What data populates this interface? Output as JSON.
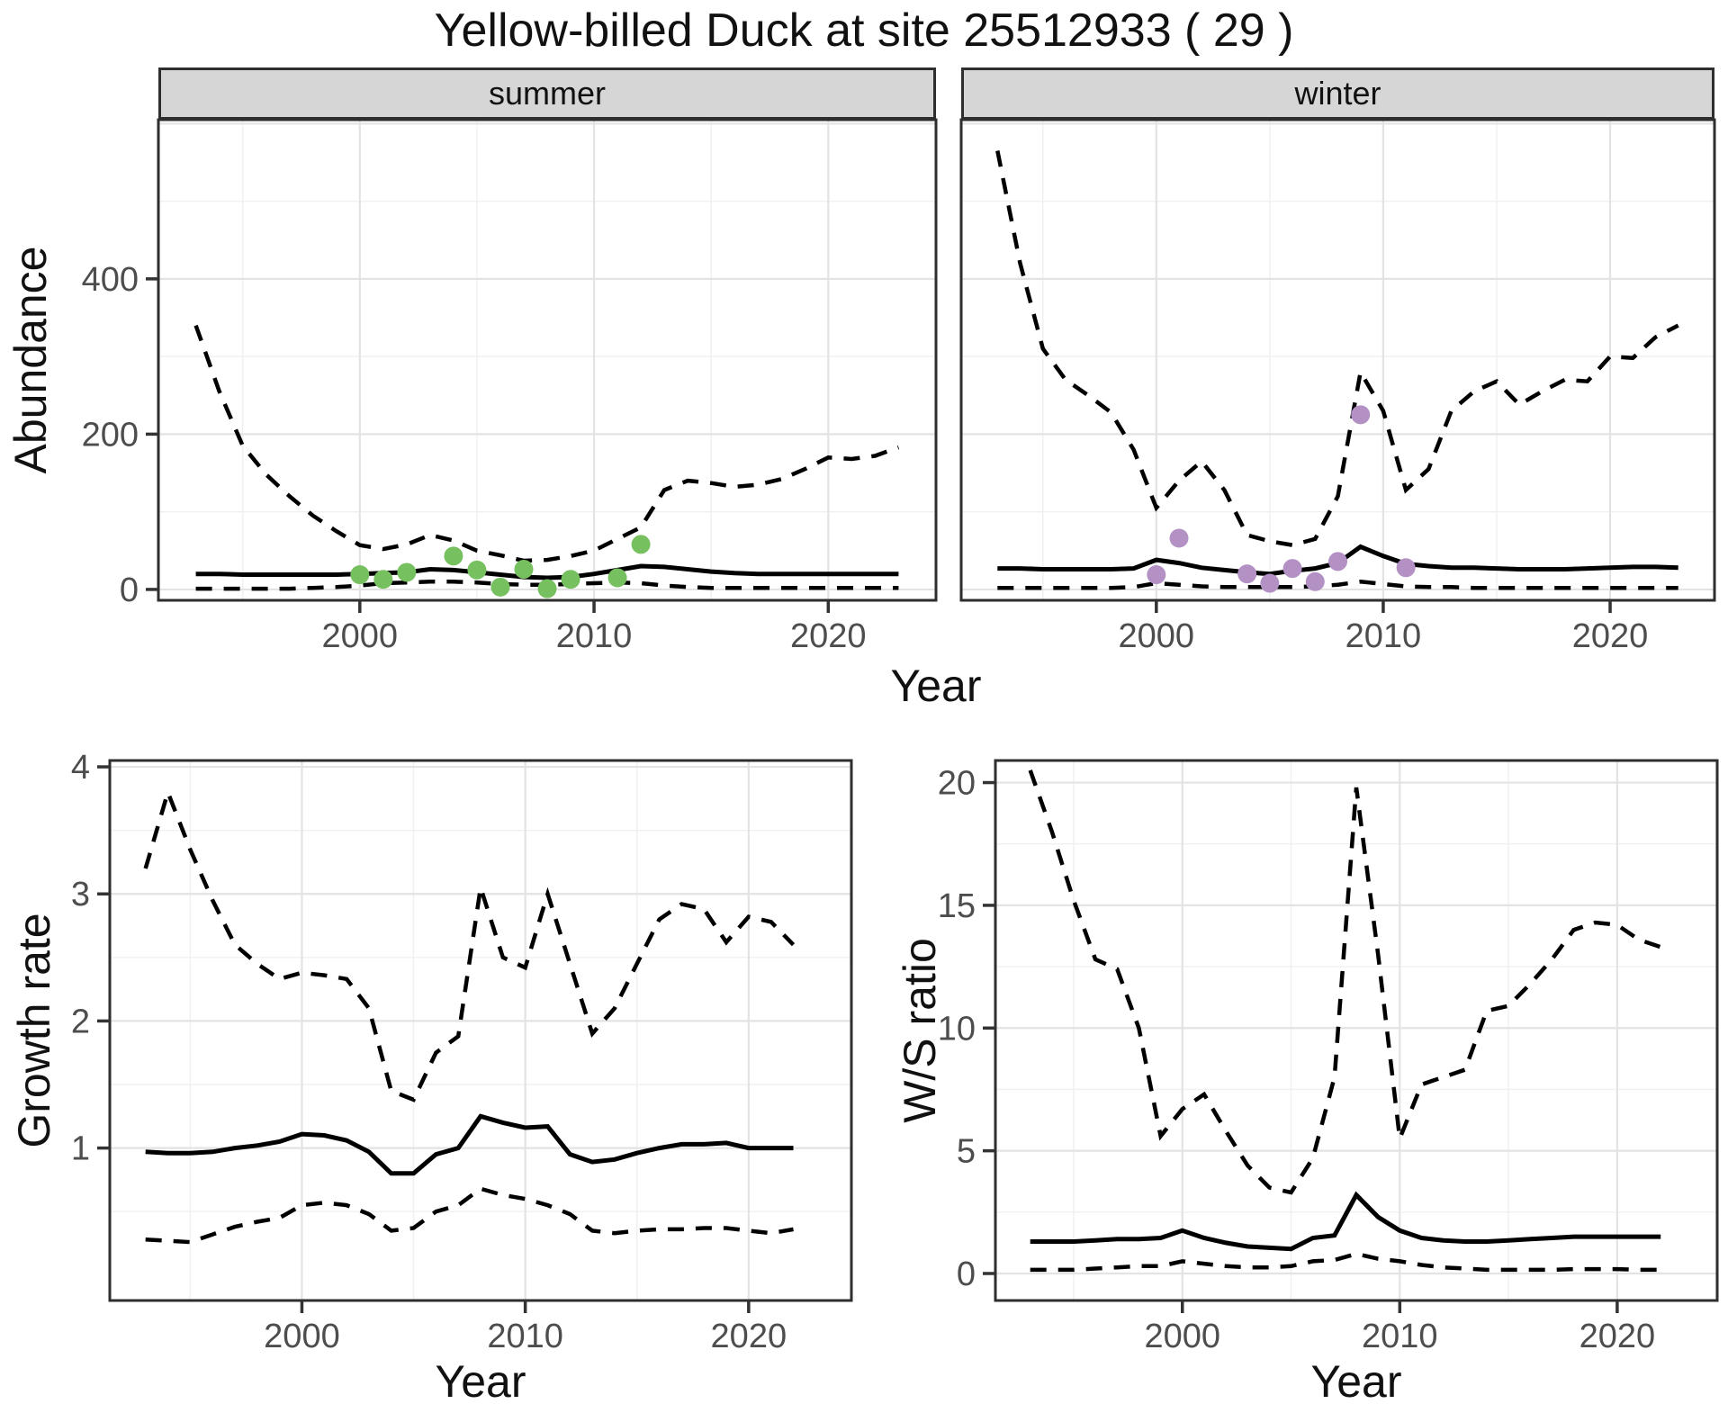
{
  "title": "Yellow-billed Duck at site 25512933 ( 29 )",
  "labels": {
    "x_axis": "Year",
    "abundance_axis": "Abundance",
    "growth_axis": "Growth rate",
    "ws_axis": "W/S ratio",
    "facet_summer": "summer",
    "facet_winter": "winter"
  },
  "colors": {
    "summer_points": "#77c05f",
    "winter_points": "#b391c5",
    "line": "#000000",
    "strip_bg": "#d6d6d6",
    "panel_border": "#2e2e2e",
    "grid_major": "#e3e3e3",
    "grid_minor": "#f0f0f0",
    "tick_text": "#4d4d4d"
  },
  "chart_data": [
    {
      "id": "abundance_summer",
      "type": "line",
      "facet": "summer",
      "xlabel": "Year",
      "ylabel": "Abundance",
      "xlim": [
        1991.4,
        2024.6
      ],
      "ylim": [
        -14,
        605
      ],
      "x_ticks": [
        2000,
        2010,
        2020
      ],
      "x_minor": [
        1995,
        2005,
        2015
      ],
      "y_ticks": [
        0,
        200,
        400
      ],
      "y_minor": [
        100,
        300,
        500
      ],
      "y_grid_extra": [
        600
      ],
      "show_y_tick_labels": true,
      "years": [
        1993,
        1994,
        1995,
        1996,
        1997,
        1998,
        1999,
        2000,
        2001,
        2002,
        2003,
        2004,
        2005,
        2006,
        2007,
        2008,
        2009,
        2010,
        2011,
        2012,
        2013,
        2014,
        2015,
        2016,
        2017,
        2018,
        2019,
        2020,
        2021,
        2022,
        2023
      ],
      "series": [
        {
          "name": "upper 95% CI",
          "style": "dashed",
          "values": [
            340,
            255,
            185,
            148,
            120,
            95,
            75,
            57,
            52,
            58,
            70,
            63,
            50,
            44,
            37,
            38,
            43,
            50,
            65,
            80,
            128,
            140,
            137,
            132,
            135,
            142,
            155,
            170,
            168,
            172,
            183
          ]
        },
        {
          "name": "median",
          "style": "solid",
          "values": [
            20,
            20,
            19,
            19,
            19,
            19,
            19,
            20,
            21,
            22,
            26,
            25,
            22,
            19,
            16,
            15,
            16,
            20,
            25,
            30,
            29,
            26,
            23,
            21,
            20,
            20,
            20,
            20,
            20,
            20,
            20
          ]
        },
        {
          "name": "lower 95% CI",
          "style": "dashed",
          "values": [
            1,
            1,
            1,
            1,
            1,
            2,
            3,
            5,
            8,
            9,
            10,
            10,
            9,
            7,
            6,
            6,
            7,
            8,
            9,
            8,
            5,
            3,
            2,
            2,
            2,
            2,
            2,
            2,
            2,
            2,
            2
          ]
        }
      ],
      "points": {
        "name": "summer observed counts",
        "color": "#77c05f",
        "x": [
          2000,
          2001,
          2002,
          2004,
          2005,
          2006,
          2007,
          2008,
          2009,
          2011,
          2012
        ],
        "y": [
          19,
          13,
          22,
          43,
          25,
          3,
          26,
          1,
          13,
          15,
          58
        ]
      }
    },
    {
      "id": "abundance_winter",
      "type": "line",
      "facet": "winter",
      "xlabel": "Year",
      "ylabel": "Abundance",
      "xlim": [
        1991.4,
        2024.6
      ],
      "ylim": [
        -14,
        605
      ],
      "x_ticks": [
        2000,
        2010,
        2020
      ],
      "x_minor": [
        1995,
        2005,
        2015
      ],
      "y_ticks": [
        0,
        200,
        400
      ],
      "y_minor": [
        100,
        300,
        500
      ],
      "y_grid_extra": [
        600
      ],
      "show_y_tick_labels": false,
      "years": [
        1993,
        1994,
        1995,
        1996,
        1997,
        1998,
        1999,
        2000,
        2001,
        2002,
        2003,
        2004,
        2005,
        2006,
        2007,
        2008,
        2009,
        2010,
        2011,
        2012,
        2013,
        2014,
        2015,
        2016,
        2017,
        2018,
        2019,
        2020,
        2021,
        2022,
        2023
      ],
      "series": [
        {
          "name": "upper 95% CI",
          "style": "dashed",
          "values": [
            565,
            420,
            310,
            270,
            250,
            228,
            180,
            105,
            140,
            165,
            128,
            70,
            62,
            57,
            65,
            120,
            280,
            230,
            128,
            155,
            230,
            255,
            268,
            238,
            255,
            270,
            268,
            300,
            298,
            325,
            340
          ]
        },
        {
          "name": "median",
          "style": "solid",
          "values": [
            27,
            27,
            26,
            26,
            26,
            26,
            27,
            38,
            34,
            28,
            25,
            22,
            20,
            24,
            27,
            34,
            55,
            43,
            33,
            30,
            28,
            28,
            27,
            26,
            26,
            26,
            27,
            28,
            29,
            29,
            28
          ]
        },
        {
          "name": "lower 95% CI",
          "style": "dashed",
          "values": [
            2,
            2,
            2,
            2,
            2,
            2,
            3,
            8,
            6,
            4,
            3,
            3,
            3,
            3,
            4,
            6,
            10,
            7,
            4,
            3,
            3,
            2,
            2,
            2,
            2,
            2,
            2,
            2,
            2,
            2,
            2
          ]
        }
      ],
      "points": {
        "name": "winter observed counts",
        "color": "#b391c5",
        "x": [
          2000,
          2001,
          2004,
          2005,
          2006,
          2007,
          2008,
          2009,
          2011
        ],
        "y": [
          19,
          66,
          20,
          8,
          27,
          10,
          36,
          225,
          28
        ]
      }
    },
    {
      "id": "growth_rate",
      "type": "line",
      "facet": "",
      "xlabel": "Year",
      "ylabel": "Growth rate",
      "xlim": [
        1991.4,
        2024.6
      ],
      "ylim": [
        -0.2,
        4.05
      ],
      "x_ticks": [
        2000,
        2010,
        2020
      ],
      "x_minor": [
        1995,
        2005,
        2015
      ],
      "y_ticks": [
        1,
        2,
        3,
        4
      ],
      "y_minor": [
        0.5,
        1.5,
        2.5,
        3.5
      ],
      "y_grid_extra": [],
      "show_y_tick_labels": true,
      "years": [
        1993,
        1994,
        1995,
        1996,
        1997,
        1998,
        1999,
        2000,
        2001,
        2002,
        2003,
        2004,
        2005,
        2006,
        2007,
        2008,
        2009,
        2010,
        2011,
        2012,
        2013,
        2014,
        2015,
        2016,
        2017,
        2018,
        2019,
        2020,
        2021,
        2022
      ],
      "series": [
        {
          "name": "upper 95% CI",
          "style": "dashed",
          "values": [
            3.2,
            3.8,
            3.35,
            2.95,
            2.6,
            2.45,
            2.33,
            2.38,
            2.36,
            2.33,
            2.1,
            1.45,
            1.38,
            1.75,
            1.88,
            3.05,
            2.5,
            2.42,
            3.0,
            2.45,
            1.9,
            2.1,
            2.45,
            2.8,
            2.92,
            2.88,
            2.62,
            2.82,
            2.78,
            2.6
          ]
        },
        {
          "name": "median",
          "style": "solid",
          "values": [
            0.97,
            0.96,
            0.96,
            0.97,
            1.0,
            1.02,
            1.05,
            1.11,
            1.1,
            1.06,
            0.97,
            0.8,
            0.8,
            0.95,
            1.0,
            1.25,
            1.2,
            1.16,
            1.17,
            0.95,
            0.89,
            0.91,
            0.96,
            1.0,
            1.03,
            1.03,
            1.04,
            1.0,
            1.0,
            1.0
          ]
        },
        {
          "name": "lower 95% CI",
          "style": "dashed",
          "values": [
            0.28,
            0.27,
            0.26,
            0.32,
            0.38,
            0.42,
            0.45,
            0.55,
            0.57,
            0.55,
            0.48,
            0.35,
            0.37,
            0.5,
            0.55,
            0.68,
            0.63,
            0.6,
            0.55,
            0.48,
            0.35,
            0.33,
            0.35,
            0.36,
            0.36,
            0.37,
            0.37,
            0.35,
            0.33,
            0.36
          ]
        }
      ],
      "points": null
    },
    {
      "id": "ws_ratio",
      "type": "line",
      "facet": "",
      "xlabel": "Year",
      "ylabel": "W/S ratio",
      "xlim": [
        1991.4,
        2024.6
      ],
      "ylim": [
        -1.1,
        20.9
      ],
      "x_ticks": [
        2000,
        2010,
        2020
      ],
      "x_minor": [
        1995,
        2005,
        2015
      ],
      "y_ticks": [
        0,
        5,
        10,
        15,
        20
      ],
      "y_minor": [
        2.5,
        7.5,
        12.5,
        17.5
      ],
      "y_grid_extra": [],
      "show_y_tick_labels": true,
      "years": [
        1993,
        1994,
        1995,
        1996,
        1997,
        1998,
        1999,
        2000,
        2001,
        2002,
        2003,
        2004,
        2005,
        2006,
        2007,
        2008,
        2009,
        2010,
        2011,
        2012,
        2013,
        2014,
        2015,
        2016,
        2017,
        2018,
        2019,
        2020,
        2021,
        2022
      ],
      "series": [
        {
          "name": "upper 95% CI",
          "style": "dashed",
          "values": [
            20.5,
            18.0,
            15.2,
            12.8,
            12.4,
            10.0,
            5.6,
            6.7,
            7.3,
            5.8,
            4.4,
            3.5,
            3.3,
            4.7,
            8.0,
            19.8,
            13.0,
            5.5,
            7.7,
            8.0,
            8.3,
            10.7,
            10.9,
            11.8,
            12.8,
            14.0,
            14.3,
            14.2,
            13.6,
            13.3
          ]
        },
        {
          "name": "median",
          "style": "solid",
          "values": [
            1.3,
            1.3,
            1.3,
            1.35,
            1.4,
            1.4,
            1.45,
            1.75,
            1.45,
            1.25,
            1.1,
            1.05,
            1.0,
            1.45,
            1.55,
            3.2,
            2.3,
            1.75,
            1.45,
            1.35,
            1.3,
            1.3,
            1.35,
            1.4,
            1.45,
            1.5,
            1.5,
            1.5,
            1.5,
            1.5
          ]
        },
        {
          "name": "lower 95% CI",
          "style": "dashed",
          "values": [
            0.15,
            0.15,
            0.15,
            0.2,
            0.25,
            0.3,
            0.3,
            0.5,
            0.4,
            0.3,
            0.25,
            0.25,
            0.3,
            0.5,
            0.55,
            0.8,
            0.6,
            0.5,
            0.35,
            0.25,
            0.2,
            0.15,
            0.15,
            0.15,
            0.15,
            0.18,
            0.18,
            0.18,
            0.15,
            0.15
          ]
        }
      ],
      "points": null
    }
  ]
}
